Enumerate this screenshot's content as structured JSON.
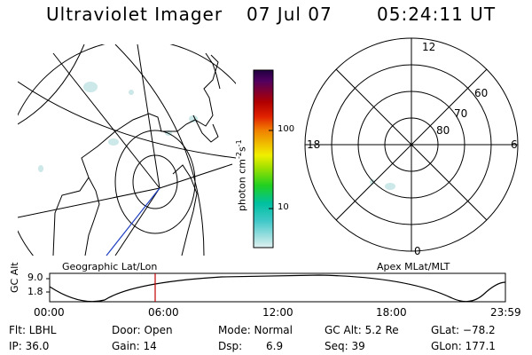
{
  "header": {
    "title": "Ultraviolet Imager",
    "date": "07 Jul 07",
    "time": "05:24:11 UT"
  },
  "colorbar": {
    "units_label": "photon cm",
    "units_exp1": "-2",
    "units_mid": "s",
    "units_exp2": "-1",
    "ticks": [
      "100",
      "10"
    ],
    "colors": [
      "#d8ecec",
      "#40c8c8",
      "#00c0a0",
      "#20d020",
      "#a0e000",
      "#f0f000",
      "#f0b000",
      "#f08000",
      "#e02000",
      "#b00000",
      "#800030",
      "#500060",
      "#200040"
    ]
  },
  "polar_plot": {
    "mlt_labels": {
      "top": "12",
      "left": "18",
      "right": "6",
      "bottom": "0"
    },
    "lat_labels": [
      "60",
      "70",
      "80"
    ]
  },
  "timeline": {
    "left_label": "Geographic Lat/Lon",
    "right_label": "Apex MLat/MLT",
    "y_axis_label": "GC Alt",
    "y_ticks": [
      "9.0",
      "1.8"
    ],
    "x_ticks": [
      "00:00",
      "06:00",
      "12:00",
      "18:00",
      "23:59"
    ],
    "current_marker_color": "#c00000"
  },
  "info": {
    "row1": [
      "Flt: LBHL",
      "Door: Open",
      "Mode: Normal",
      "GC Alt: 5.2 Re",
      "GLat: −78.2"
    ],
    "row2": [
      "IP: 36.0",
      "Gain: 14",
      "Dsp:",
      "6.9",
      "Seq: 39",
      "GLon: 177.1"
    ]
  },
  "colors": {
    "faint_aurora": "#d8ecec",
    "trajectory": "#2040c0"
  }
}
